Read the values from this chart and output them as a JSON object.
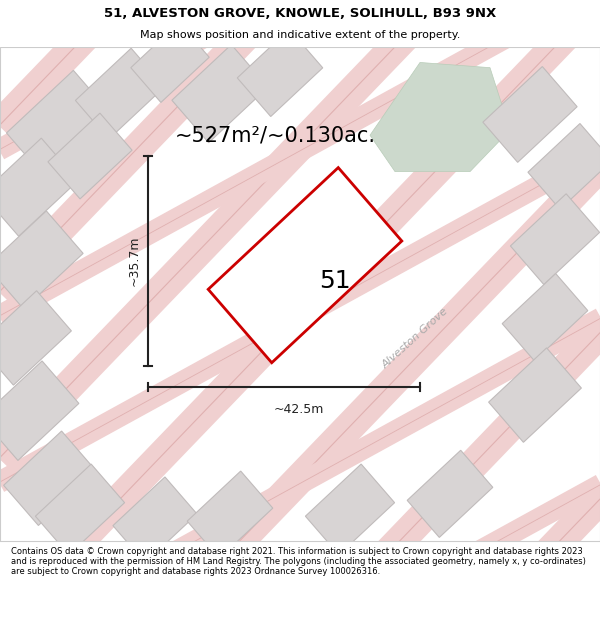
{
  "title_line1": "51, ALVESTON GROVE, KNOWLE, SOLIHULL, B93 9NX",
  "title_line2": "Map shows position and indicative extent of the property.",
  "area_text": "~527m²/~0.130ac.",
  "label_51": "51",
  "dim_height": "~35.7m",
  "dim_width": "~42.5m",
  "street_label": "Alveston Grove",
  "footer_text": "Contains OS data © Crown copyright and database right 2021. This information is subject to Crown copyright and database rights 2023 and is reproduced with the permission of HM Land Registry. The polygons (including the associated geometry, namely x, y co-ordinates) are subject to Crown copyright and database rights 2023 Ordnance Survey 100026316.",
  "bg_color": "#ffffff",
  "map_bg": "#f9f5f5",
  "plot_fill": "#f0eeee",
  "plot_edge": "#cc0000",
  "dim_color": "#222222",
  "building_fill": "#d8d4d4",
  "building_edge": "#c0bbbb",
  "green_fill": "#ccd9cc",
  "green_edge": "#b8ccb8",
  "road_pink_fill": "#f0d0d0",
  "road_pink_edge": "#e0b0b0"
}
